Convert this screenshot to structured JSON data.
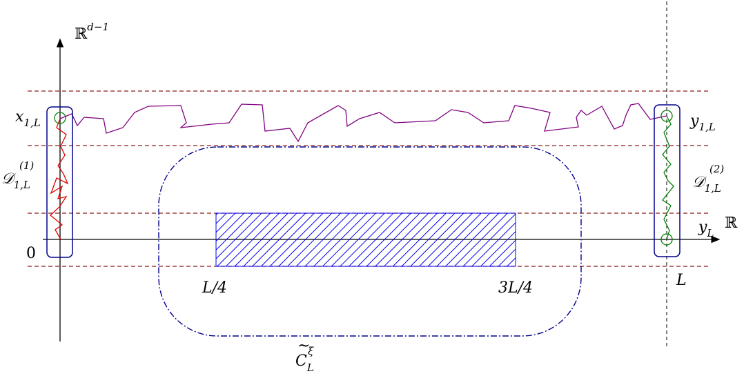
{
  "labels": {
    "rd1_base": "ℝ",
    "rd1_sup": "d−1",
    "r_axis": "ℝ",
    "x1L_base": "x",
    "x1L_sub": "1,L",
    "y1L_base": "y",
    "y1L_sub": "1,L",
    "d1_base": "𝒟",
    "d1_sub": "1,L",
    "d1_sup": "(1)",
    "d2_base": "𝒟",
    "d2_sub": "1,L",
    "d2_sup": "(2)",
    "yL_base": "y",
    "yL_sub": "L",
    "origin": "0",
    "L": "L",
    "quarter": "L/4",
    "three_quarter": "3L/4",
    "c_base": "C",
    "c_sub": "L",
    "c_sup": "ξ",
    "c_tilde": "~"
  },
  "colors": {
    "axis": "#000000",
    "guide_dashed": "#8b1a1a",
    "path_top": "#800080",
    "path_left": "#e00000",
    "path_right": "#008000",
    "box": "#00008b",
    "hatch": "#0000ee",
    "region": "#00008b"
  }
}
